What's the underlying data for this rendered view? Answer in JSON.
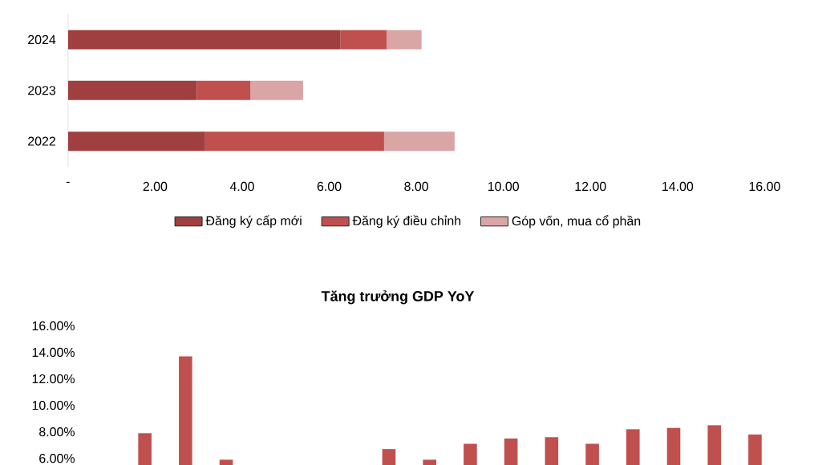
{
  "chart_data": [
    {
      "type": "bar",
      "orientation": "horizontal",
      "stacked": true,
      "categories": [
        "2024",
        "2023",
        "2022"
      ],
      "series": [
        {
          "name": "Đăng ký cấp mới",
          "color": "#a03f3f",
          "values": [
            6.26,
            2.96,
            3.15
          ]
        },
        {
          "name": "Đăng ký điều chỉnh",
          "color": "#c0504d",
          "values": [
            1.06,
            1.23,
            4.11
          ]
        },
        {
          "name": "Góp vốn, mua cổ phần",
          "color": "#d9a5a5",
          "values": [
            0.8,
            1.21,
            1.62
          ]
        }
      ],
      "xlim": [
        0,
        16
      ],
      "xticks": [
        {
          "value": 0,
          "label": "-"
        },
        {
          "value": 2,
          "label": "2.00"
        },
        {
          "value": 4,
          "label": "4.00"
        },
        {
          "value": 6,
          "label": "6.00"
        },
        {
          "value": 8,
          "label": "8.00"
        },
        {
          "value": 10,
          "label": "10.00"
        },
        {
          "value": 12,
          "label": "12.00"
        },
        {
          "value": 14,
          "label": "14.00"
        },
        {
          "value": 16,
          "label": "16.00"
        }
      ],
      "legend": "bottom"
    },
    {
      "type": "bar",
      "categories": [
        null,
        null,
        null
      ],
      "values": [
        7.9,
        13.7,
        5.9
      ],
      "color": "#c0504d",
      "ylim": [
        5.5,
        16
      ],
      "yticks": [
        {
          "value": 6,
          "label": "6.00%"
        },
        {
          "value": 8,
          "label": "8.00%"
        },
        {
          "value": 10,
          "label": "10.00%"
        },
        {
          "value": 12,
          "label": "12.00%"
        },
        {
          "value": 14,
          "label": "14.00%"
        },
        {
          "value": 16,
          "label": "16.00%"
        }
      ],
      "tick_labels": "y"
    },
    {
      "type": "bar",
      "title": "Tăng trưởng GDP YoY",
      "categories": [
        null,
        null,
        null,
        null,
        null,
        null,
        null,
        null,
        null,
        null
      ],
      "values": [
        6.7,
        5.9,
        7.1,
        7.5,
        7.6,
        7.1,
        8.2,
        8.3,
        8.5,
        7.8
      ],
      "color": "#c0504d",
      "ylim": [
        5.5,
        16
      ],
      "tick_labels": false
    }
  ]
}
